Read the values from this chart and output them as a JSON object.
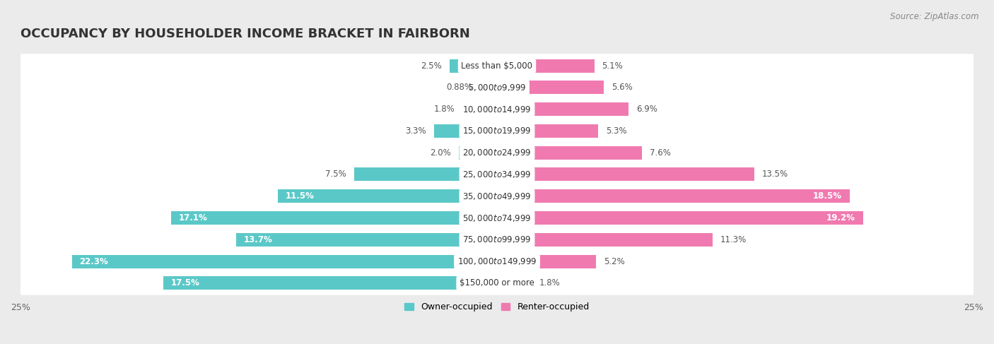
{
  "title": "OCCUPANCY BY HOUSEHOLDER INCOME BRACKET IN FAIRBORN",
  "source": "Source: ZipAtlas.com",
  "categories": [
    "Less than $5,000",
    "$5,000 to $9,999",
    "$10,000 to $14,999",
    "$15,000 to $19,999",
    "$20,000 to $24,999",
    "$25,000 to $34,999",
    "$35,000 to $49,999",
    "$50,000 to $74,999",
    "$75,000 to $99,999",
    "$100,000 to $149,999",
    "$150,000 or more"
  ],
  "owner_values": [
    2.5,
    0.88,
    1.8,
    3.3,
    2.0,
    7.5,
    11.5,
    17.1,
    13.7,
    22.3,
    17.5
  ],
  "renter_values": [
    5.1,
    5.6,
    6.9,
    5.3,
    7.6,
    13.5,
    18.5,
    19.2,
    11.3,
    5.2,
    1.8
  ],
  "owner_color": "#5bc8c8",
  "renter_color": "#f07ab0",
  "background_color": "#ebebeb",
  "bar_background": "#ffffff",
  "xlim": 25.0,
  "bar_height": 0.62,
  "title_fontsize": 13,
  "label_fontsize": 8.5,
  "tick_fontsize": 9,
  "source_fontsize": 8.5,
  "legend_fontsize": 9,
  "owner_label_inside_threshold": 10.0,
  "renter_label_inside_threshold": 15.0
}
